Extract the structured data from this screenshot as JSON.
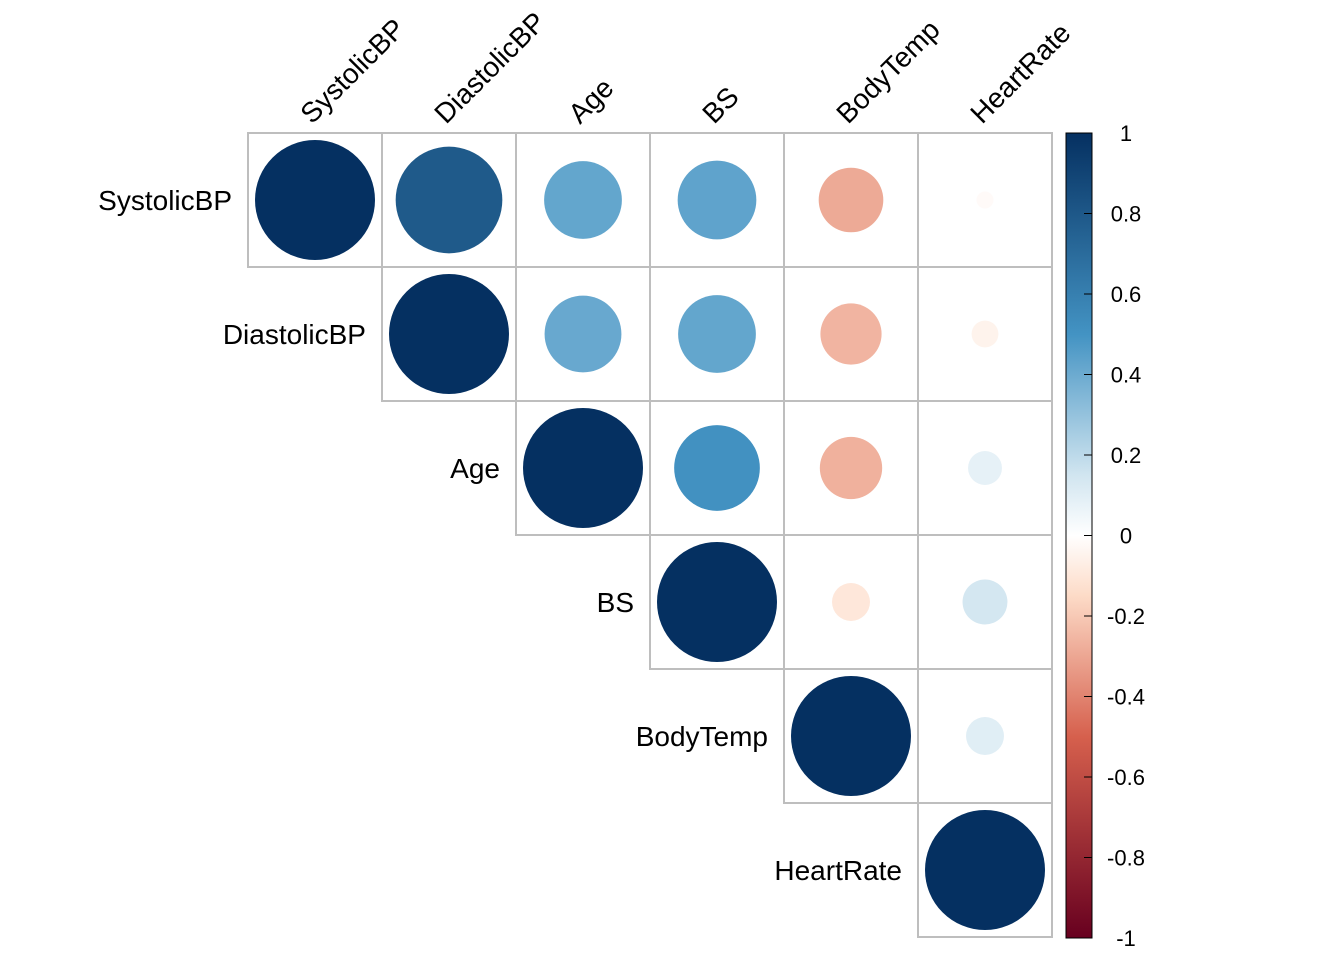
{
  "chart_data": {
    "type": "heatmap",
    "style": "correlation-circles-upper-triangle",
    "variables": [
      "SystolicBP",
      "DiastolicBP",
      "Age",
      "BS",
      "BodyTemp",
      "HeartRate"
    ],
    "matrix": [
      [
        1.0,
        0.79,
        0.42,
        0.43,
        -0.29,
        -0.02
      ],
      [
        0.79,
        1.0,
        0.41,
        0.42,
        -0.26,
        -0.05
      ],
      [
        0.42,
        0.41,
        1.0,
        0.51,
        -0.27,
        0.08
      ],
      [
        0.43,
        0.42,
        0.51,
        1.0,
        -0.1,
        0.14
      ],
      [
        -0.29,
        -0.26,
        -0.27,
        -0.1,
        1.0,
        0.1
      ],
      [
        -0.02,
        -0.05,
        0.08,
        0.14,
        0.1,
        1.0
      ]
    ],
    "colorbar": {
      "range": [
        -1,
        1
      ],
      "ticks": [
        "1",
        "0.8",
        "0.6",
        "0.4",
        "0.2",
        "0",
        "-0.2",
        "-0.4",
        "-0.6",
        "-0.8",
        "-1"
      ]
    },
    "colors": {
      "negative_end": "#67001F",
      "negative_mid": "#D6604D",
      "negative_light": "#FDDBC7",
      "zero": "#FFFFFF",
      "positive_light": "#D1E5F0",
      "positive_mid": "#4393C3",
      "positive_end": "#053061",
      "grid": "#BEBEBE"
    },
    "legend_placement": "right"
  }
}
